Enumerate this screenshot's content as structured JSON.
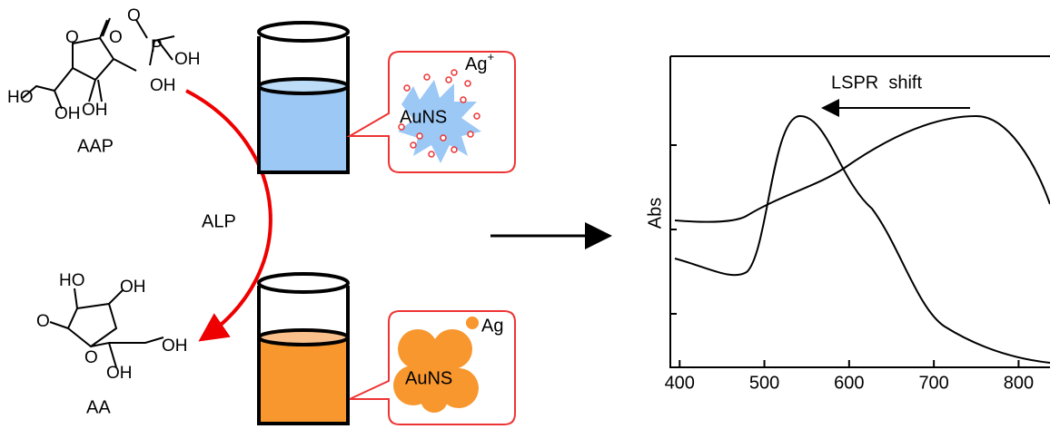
{
  "aap": {
    "atoms": [
      "O",
      "O",
      "P",
      "OH",
      "OH",
      "HO",
      "O",
      "OH",
      "OH"
    ],
    "label": "AAP"
  },
  "enzyme": "ALP",
  "aa": {
    "atoms": [
      "HO",
      "OH",
      "O",
      "O",
      "OH",
      "OH"
    ],
    "label": "AA"
  },
  "top_callout": {
    "ion": "Ag",
    "charge": "+",
    "particle": "AuNS"
  },
  "bottom_callout": {
    "ion": "Ag",
    "particle": "AuNS"
  },
  "spectrum": {
    "annotation": "LSPR  shift",
    "ylabel": "Abs",
    "xlim": [
      389,
      836
    ],
    "xticks": [
      400,
      500,
      600,
      700,
      800
    ]
  }
}
